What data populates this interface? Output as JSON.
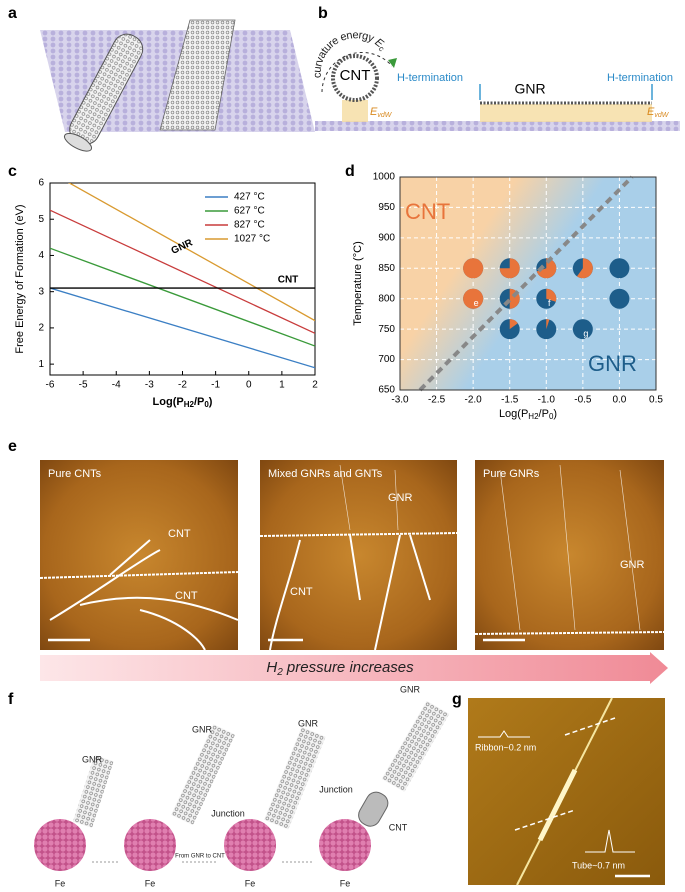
{
  "panel_labels": [
    "a",
    "b",
    "c",
    "d",
    "e",
    "f",
    "g"
  ],
  "panel_b": {
    "curvature_label": [
      "curvature energy ",
      "E",
      "c"
    ],
    "cnt": "CNT",
    "gnr": "GNR",
    "h_termination": [
      "H-termination",
      "H-termination"
    ],
    "evdw": [
      [
        "E",
        "vdW"
      ],
      [
        "E",
        "vdW"
      ]
    ]
  },
  "chart_data": [
    {
      "type": "line",
      "y_label": "Free Energy of Formation (eV)",
      "x_label": [
        "Log(P",
        "H2",
        "/P",
        "0",
        ")"
      ],
      "x": [
        -6,
        2
      ],
      "series": [
        {
          "name": "427 °C",
          "color": "#3b7fc4",
          "values": [
            3.1,
            0.9
          ]
        },
        {
          "name": "627 °C",
          "color": "#3a9a3a",
          "values": [
            4.2,
            1.5
          ]
        },
        {
          "name": "827 °C",
          "color": "#c83c3c",
          "values": [
            5.25,
            1.85
          ]
        },
        {
          "name": "1027 °C",
          "color": "#d99a30",
          "values": [
            6.3,
            2.2
          ]
        }
      ],
      "reference_line": {
        "name": "CNT",
        "value": 3.1,
        "color": "#000000"
      },
      "annotations": [
        "GNR"
      ],
      "xlim": [
        -6,
        2
      ],
      "ylim": [
        0.7,
        6
      ],
      "xticks": [
        -6,
        -5,
        -4,
        -3,
        -2,
        -1,
        0,
        1,
        2
      ],
      "yticks": [
        1,
        2,
        3,
        4,
        5,
        6
      ],
      "legend": "upper right"
    },
    {
      "type": "scatter",
      "y_label": "Temperature (°C)",
      "x_label": [
        "Log(P",
        "H2",
        "/P",
        "0",
        ")"
      ],
      "x": [
        -2.0,
        -1.5,
        -1.0,
        -0.5,
        0.0,
        -2.0,
        -1.5,
        -1.0,
        0.0,
        -1.5,
        -1.0,
        -0.5
      ],
      "values": [
        850,
        850,
        850,
        850,
        850,
        800,
        800,
        800,
        800,
        750,
        750,
        750
      ],
      "cnt_fraction": [
        100,
        75,
        70,
        60,
        0,
        100,
        50,
        30,
        0,
        15,
        5,
        0
      ],
      "point_labels": [
        null,
        null,
        null,
        null,
        null,
        "e",
        null,
        "f",
        null,
        null,
        null,
        "g"
      ],
      "region_labels": [
        "CNT",
        "GNR"
      ],
      "colors": {
        "cnt": "#e8743b",
        "gnr": "#1d5d8a"
      },
      "xlim": [
        -3,
        0.5
      ],
      "ylim": [
        650,
        1000
      ],
      "xticks": [
        {
          "value": -3,
          "label": "-3.0"
        },
        -2.5,
        {
          "value": -2,
          "label": "-2.0"
        },
        -1.5,
        {
          "value": -1,
          "label": "-1.0"
        },
        -0.5,
        {
          "value": 0,
          "label": "0.0"
        },
        0.5
      ],
      "yticks": [
        650,
        700,
        750,
        800,
        850,
        900,
        950,
        1000
      ],
      "grid": true
    }
  ],
  "panel_e": {
    "titles": [
      "Pure CNTs",
      "Mixed GNRs and GNTs",
      "Pure GNRs"
    ],
    "annotations": [
      "CNT",
      "CNT",
      "GNR",
      "CNT",
      "GNR"
    ],
    "arrow_label": [
      "H",
      "2",
      " pressure increases"
    ]
  },
  "panel_f": {
    "labels": [
      "GNR",
      "Fe",
      "GNR",
      "Fe",
      "From GNR to CNT",
      "GNR",
      "Junction",
      "Fe",
      "GNR",
      "Junction",
      "CNT",
      "Fe"
    ]
  },
  "panel_g": {
    "labels": [
      "Ribbon~0.2 nm",
      "Tube~0.7 nm"
    ]
  }
}
